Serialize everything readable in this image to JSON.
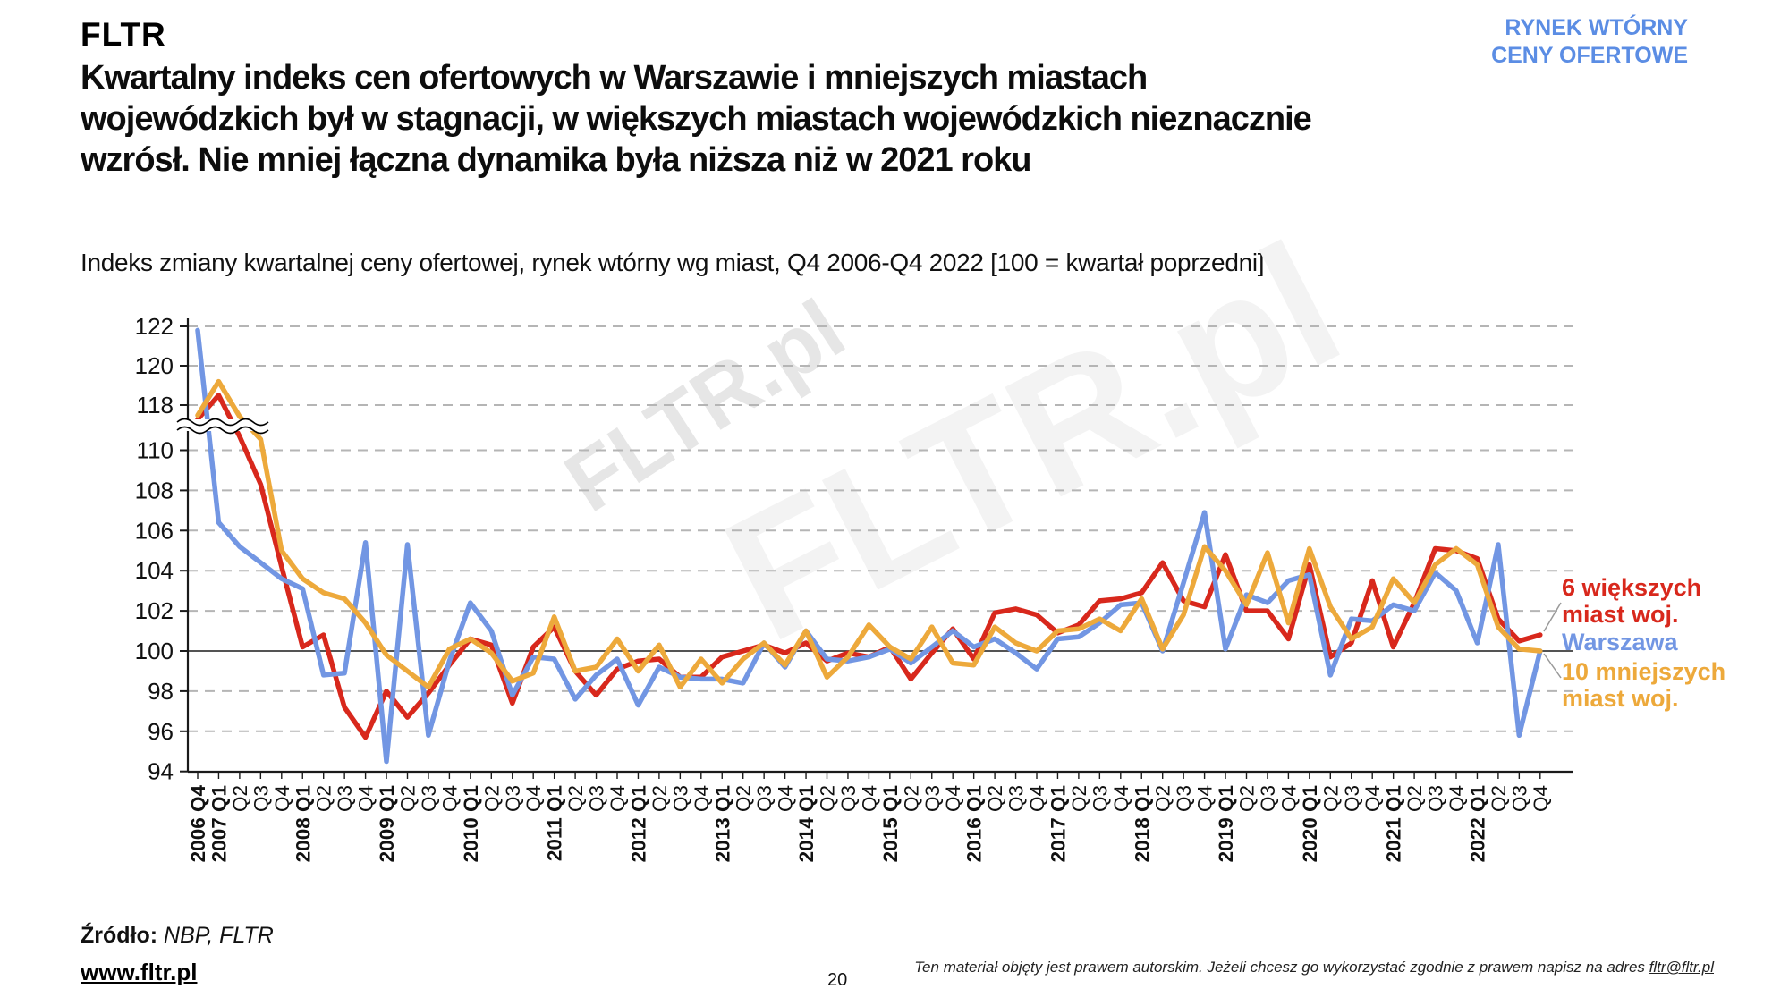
{
  "header": {
    "logo": "FLTR",
    "badge_line1": "RYNEK WTÓRNY",
    "badge_line2": "CENY OFERTOWE"
  },
  "title": {
    "line1": "Kwartalny indeks cen ofertowych w Warszawie i mniejszych miastach",
    "line2": "wojewódzkich był w stagnacji, w większych miastach wojewódzkich nieznacznie",
    "line3": "wzrósł. Nie mniej łączna dynamika była niższa niż w 2021 roku"
  },
  "subtitle": "Indeks zmiany kwartalnej ceny ofertowej, rynek wtórny wg miast, Q4 2006-Q4 2022 [100 = kwartał poprzedni]",
  "watermark": "FLTR.pl",
  "colors": {
    "accent_blue": "#5b8de4",
    "warszawa": "#7296e3",
    "six_bigger": "#d8281c",
    "ten_smaller": "#eda93b",
    "grid": "#b5b5b5",
    "axis": "#1a1a1a",
    "baseline": "#3c3c3c",
    "connector": "#999999"
  },
  "legend": [
    {
      "line1": "6 większych",
      "line2": "miast woj."
    },
    {
      "line1": "Warszawa",
      "line2": ""
    },
    {
      "line1": "10 mniejszych",
      "line2": "miast woj."
    }
  ],
  "chart_data": {
    "type": "line",
    "title": "",
    "xlabel": "",
    "ylabel": "",
    "ylim": [
      94,
      122.5
    ],
    "grid": "dashed-horizontal",
    "legend_position": "right",
    "baseline": 100,
    "axis_break": {
      "from": 110,
      "to": 118
    },
    "y_ticks": [
      94,
      96,
      98,
      100,
      102,
      104,
      106,
      108,
      110,
      118,
      120,
      122
    ],
    "x_labels": [
      "2006 Q4",
      "2007 Q1",
      "Q2",
      "Q3",
      "Q4",
      "2008 Q1",
      "Q2",
      "Q3",
      "Q4",
      "2009 Q1",
      "Q2",
      "Q3",
      "Q4",
      "2010 Q1",
      "Q2",
      "Q3",
      "Q4",
      "2011 Q1",
      "Q2",
      "Q3",
      "Q4",
      "2012 Q1",
      "Q2",
      "Q3",
      "Q4",
      "2013 Q1",
      "Q2",
      "Q3",
      "Q4",
      "2014 Q1",
      "Q2",
      "Q3",
      "Q4",
      "2015 Q1",
      "Q2",
      "Q3",
      "Q4",
      "2016 Q1",
      "Q2",
      "Q3",
      "Q4",
      "2017 Q1",
      "Q2",
      "Q3",
      "Q4",
      "2018 Q1",
      "Q2",
      "Q3",
      "Q4",
      "2019 Q1",
      "Q2",
      "Q3",
      "Q4",
      "2020 Q1",
      "Q2",
      "Q3",
      "Q4",
      "2021 Q1",
      "Q2",
      "Q3",
      "Q4",
      "2022 Q1",
      "Q2",
      "Q3",
      "Q4"
    ],
    "series": [
      {
        "name": "6 większych miast woj.",
        "color": "#d8281c",
        "values": [
          115.5,
          118.5,
          112.5,
          108.3,
          104.2,
          100.2,
          100.8,
          97.2,
          95.7,
          98.0,
          96.7,
          97.9,
          99.3,
          100.6,
          100.3,
          97.4,
          100.2,
          101.2,
          99.0,
          97.8,
          99.1,
          99.5,
          99.6,
          98.7,
          98.7,
          99.7,
          100.0,
          100.3,
          99.9,
          100.4,
          99.5,
          99.9,
          99.7,
          100.2,
          98.6,
          99.9,
          101.1,
          99.6,
          101.9,
          102.1,
          101.8,
          100.9,
          101.3,
          102.5,
          102.6,
          102.9,
          104.4,
          102.5,
          102.2,
          104.8,
          102.0,
          102.0,
          100.6,
          104.3,
          99.7,
          100.4,
          103.5,
          100.2,
          102.4,
          105.1,
          105.0,
          104.6,
          101.6,
          100.5,
          100.8
        ]
      },
      {
        "name": "Warszawa",
        "color": "#7296e3",
        "values": [
          121.8,
          106.4,
          105.2,
          104.4,
          103.6,
          103.1,
          98.8,
          98.9,
          105.4,
          94.5,
          105.3,
          95.8,
          99.5,
          102.4,
          101.0,
          97.8,
          99.7,
          99.6,
          97.6,
          98.8,
          99.6,
          97.3,
          99.2,
          98.7,
          98.6,
          98.6,
          98.4,
          100.4,
          99.2,
          101.0,
          99.6,
          99.5,
          99.7,
          100.1,
          99.4,
          100.2,
          101.0,
          100.2,
          100.6,
          99.9,
          99.1,
          100.6,
          100.7,
          101.4,
          102.3,
          102.4,
          100.0,
          103.4,
          106.9,
          100.1,
          102.8,
          102.4,
          103.5,
          103.8,
          98.8,
          101.6,
          101.5,
          102.3,
          102.0,
          103.9,
          103.0,
          100.4,
          105.3,
          95.8,
          100.0
        ]
      },
      {
        "name": "10 mniejszych miast woj.",
        "color": "#eda93b",
        "values": [
          116.2,
          119.2,
          116.0,
          112.0,
          105.0,
          103.6,
          102.9,
          102.6,
          101.4,
          99.8,
          99.0,
          98.2,
          100.1,
          100.6,
          99.9,
          98.5,
          98.9,
          101.7,
          99.0,
          99.2,
          100.6,
          99.0,
          100.3,
          98.2,
          99.6,
          98.4,
          99.6,
          100.4,
          99.3,
          101.0,
          98.7,
          99.7,
          101.3,
          100.2,
          99.6,
          101.2,
          99.4,
          99.3,
          101.2,
          100.4,
          100.0,
          101.0,
          101.1,
          101.6,
          101.0,
          102.6,
          100.1,
          101.8,
          105.2,
          104.0,
          102.3,
          104.9,
          101.4,
          105.1,
          102.2,
          100.6,
          101.2,
          103.6,
          102.4,
          104.3,
          105.1,
          104.3,
          101.2,
          100.1,
          100.0
        ]
      }
    ]
  },
  "footer": {
    "source_label": "Źródło:",
    "source_value": " NBP, FLTR",
    "website": "www.fltr.pl",
    "page_number": "20",
    "disclaimer_text": "Ten materiał objęty jest prawem autorskim. Jeżeli chcesz go wykorzystać zgodnie z prawem napisz na adres ",
    "disclaimer_link": "fltr@fltr.pl"
  }
}
